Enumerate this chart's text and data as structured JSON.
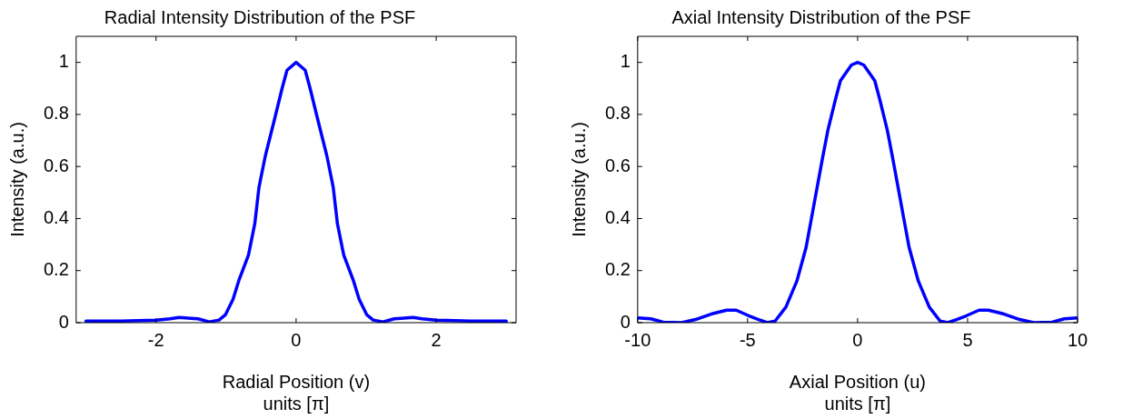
{
  "chart_data": [
    {
      "type": "line",
      "title": "Radial Intensity Distribution of the PSF",
      "xlabel": "Radial Position (v)\nunits [π]",
      "ylabel": "Intensity (a.u.)",
      "xlim": [
        -3.14,
        3.14
      ],
      "ylim": [
        0,
        1.1
      ],
      "xticks": [
        -2,
        0,
        2
      ],
      "yticks": [
        0,
        0.2,
        0.4,
        0.6,
        0.8,
        1
      ],
      "marker": "none",
      "line_style": "solid",
      "x": [
        -3,
        -2.5,
        -2,
        -1.8,
        -1.67,
        -1.5,
        -1.4,
        -1.24,
        -1.1,
        -1.01,
        -0.9,
        -0.82,
        -0.68,
        -0.59,
        -0.53,
        -0.44,
        -0.3,
        -0.2,
        -0.13,
        0,
        0.13,
        0.2,
        0.3,
        0.44,
        0.53,
        0.59,
        0.68,
        0.82,
        0.9,
        1.01,
        1.1,
        1.24,
        1.4,
        1.5,
        1.67,
        1.8,
        2,
        2.5,
        3
      ],
      "series": [
        {
          "color": "#0000ff",
          "values": [
            0.006,
            0.006,
            0.01,
            0.015,
            0.02,
            0.017,
            0.015,
            0.003,
            0.01,
            0.03,
            0.09,
            0.16,
            0.26,
            0.38,
            0.52,
            0.64,
            0.79,
            0.9,
            0.97,
            1,
            0.97,
            0.9,
            0.79,
            0.64,
            0.52,
            0.38,
            0.26,
            0.16,
            0.09,
            0.03,
            0.01,
            0.003,
            0.015,
            0.017,
            0.02,
            0.015,
            0.01,
            0.006,
            0.006
          ]
        }
      ]
    },
    {
      "type": "line",
      "title": "Axial Intensity Distribution of the PSF",
      "xlabel": "Axial Position (u)\nunits [π]",
      "ylabel": "Intensity (a.u.)",
      "xlim": [
        -10,
        10
      ],
      "ylim": [
        0,
        1.1
      ],
      "xticks": [
        -10,
        -5,
        0,
        5,
        10
      ],
      "yticks": [
        0,
        0.2,
        0.4,
        0.6,
        0.8,
        1
      ],
      "marker": "none",
      "line_style": "solid",
      "x": [
        -10,
        -9.4,
        -8.84,
        -8,
        -7.37,
        -6.66,
        -5.95,
        -5.52,
        -4.96,
        -4.5,
        -4.1,
        -3.75,
        -3.26,
        -2.76,
        -2.34,
        -2.1,
        -1.84,
        -1.6,
        -1.35,
        -1,
        -0.78,
        -0.28,
        0,
        0.28,
        0.78,
        1,
        1.35,
        1.6,
        1.84,
        2.1,
        2.34,
        2.76,
        3.26,
        3.75,
        4.1,
        4.5,
        4.96,
        5.52,
        5.95,
        6.66,
        7.37,
        8,
        8.84,
        9.4,
        10
      ],
      "series": [
        {
          "color": "#0000ff",
          "values": [
            0.018,
            0.015,
            0.002,
            0,
            0.012,
            0.033,
            0.048,
            0.048,
            0.027,
            0.012,
            0,
            0.006,
            0.06,
            0.16,
            0.29,
            0.4,
            0.52,
            0.63,
            0.74,
            0.86,
            0.93,
            0.99,
            1,
            0.99,
            0.93,
            0.86,
            0.74,
            0.63,
            0.52,
            0.4,
            0.29,
            0.16,
            0.06,
            0.006,
            0,
            0.012,
            0.027,
            0.048,
            0.048,
            0.033,
            0.012,
            0,
            0.002,
            0.015,
            0.018
          ]
        }
      ]
    }
  ]
}
